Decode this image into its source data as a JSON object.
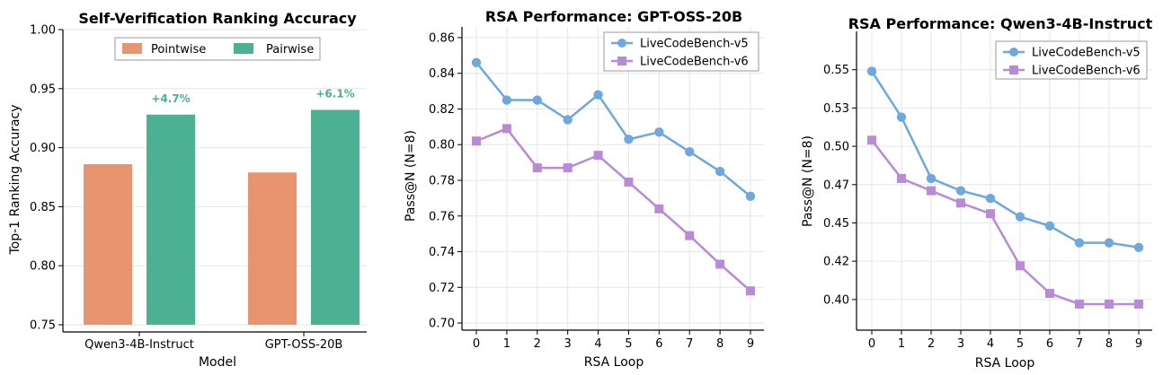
{
  "chart_data": [
    {
      "type": "bar",
      "title": "Self-Verification Ranking Accuracy",
      "xlabel": "Model",
      "ylabel": "Top-1 Ranking Accuracy",
      "categories": [
        "Qwen3-4B-Instruct",
        "GPT-OSS-20B"
      ],
      "series": [
        {
          "name": "Pointwise",
          "values": [
            0.886,
            0.879
          ],
          "color": "#E8956F"
        },
        {
          "name": "Pairwise",
          "values": [
            0.928,
            0.932
          ],
          "color": "#4CB093"
        }
      ],
      "annotations": [
        "+4.7%",
        "+6.1%"
      ],
      "annotation_color": "#4CB093",
      "ylim": [
        0.75,
        1.0
      ],
      "yticks": [
        "0.75",
        "0.80",
        "0.85",
        "0.90",
        "0.95",
        "1.00"
      ],
      "ytick_values": [
        0.75,
        0.8,
        0.85,
        0.9,
        0.95,
        1.0
      ],
      "legend_position": "top-center",
      "grid": true
    },
    {
      "type": "line",
      "title": "RSA Performance: GPT-OSS-20B",
      "xlabel": "RSA Loop",
      "ylabel": "Pass@N (N=8)",
      "x": [
        0,
        1,
        2,
        3,
        4,
        5,
        6,
        7,
        8,
        9
      ],
      "xticks": [
        "0",
        "1",
        "2",
        "3",
        "4",
        "5",
        "6",
        "7",
        "8",
        "9"
      ],
      "series": [
        {
          "name": "LiveCodeBench-v5",
          "marker": "circle",
          "color": "#6FA8DC",
          "values": [
            0.846,
            0.825,
            0.825,
            0.814,
            0.828,
            0.803,
            0.807,
            0.796,
            0.785,
            0.771
          ]
        },
        {
          "name": "LiveCodeBench-v6",
          "marker": "square",
          "color": "#B98AD6",
          "values": [
            0.802,
            0.809,
            0.787,
            0.787,
            0.794,
            0.779,
            0.764,
            0.749,
            0.733,
            0.718
          ]
        }
      ],
      "ylim": [
        0.696,
        0.866
      ],
      "yticks": [
        "0.70",
        "0.72",
        "0.74",
        "0.76",
        "0.78",
        "0.80",
        "0.82",
        "0.84",
        "0.86"
      ],
      "ytick_values": [
        0.7,
        0.72,
        0.74,
        0.76,
        0.78,
        0.8,
        0.82,
        0.84,
        0.86
      ],
      "legend_position": "top-right",
      "grid": true
    },
    {
      "type": "line",
      "title": "RSA Performance: Qwen3-4B-Instruct",
      "xlabel": "RSA Loop",
      "ylabel": "Pass@N (N=8)",
      "x": [
        0,
        1,
        2,
        3,
        4,
        5,
        6,
        7,
        8,
        9
      ],
      "xticks": [
        "0",
        "1",
        "2",
        "3",
        "4",
        "5",
        "6",
        "7",
        "8",
        "9"
      ],
      "series": [
        {
          "name": "LiveCodeBench-v5",
          "marker": "circle",
          "color": "#6FA8DC",
          "values": [
            0.549,
            0.519,
            0.479,
            0.471,
            0.466,
            0.454,
            0.448,
            0.437,
            0.437,
            0.434
          ]
        },
        {
          "name": "LiveCodeBench-v6",
          "marker": "square",
          "color": "#B98AD6",
          "values": [
            0.504,
            0.479,
            0.471,
            0.463,
            0.456,
            0.422,
            0.404,
            0.397,
            0.397,
            0.397
          ]
        }
      ],
      "ylim": [
        0.38,
        0.575
      ],
      "yticks": [
        "0.40",
        "0.42",
        "0.45",
        "0.47",
        "0.50",
        "0.53",
        "0.55"
      ],
      "ytick_values": [
        0.4,
        0.425,
        0.45,
        0.475,
        0.5,
        0.525,
        0.55
      ],
      "legend_position": "top-right",
      "grid": true
    }
  ]
}
